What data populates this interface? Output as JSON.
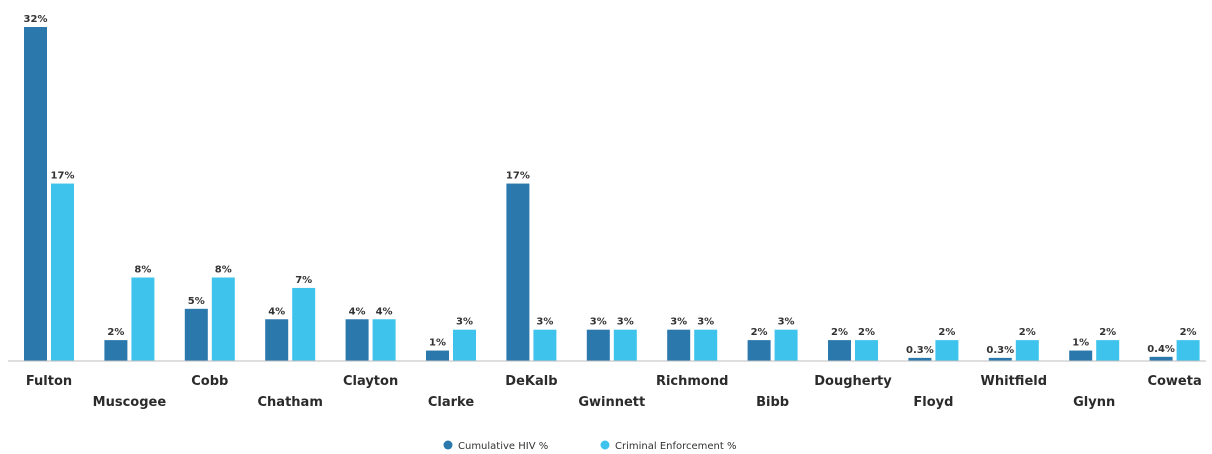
{
  "chart_data": {
    "type": "bar",
    "categories": [
      "Fulton",
      "Muscogee",
      "Cobb",
      "Chatham",
      "Clayton",
      "Clarke",
      "DeKalb",
      "Gwinnett",
      "Richmond",
      "Bibb",
      "Dougherty",
      "Floyd",
      "Whitfield",
      "Glynn",
      "Coweta"
    ],
    "series": [
      {
        "name": "Cumulative HIV %",
        "color": "#2b78ad",
        "values": [
          32,
          2,
          5,
          4,
          4,
          1,
          17,
          3,
          3,
          2,
          2,
          0.3,
          0.3,
          1,
          0.4
        ],
        "labels": [
          "32%",
          "2%",
          "5%",
          "4%",
          "4%",
          "1%",
          "17%",
          "3%",
          "3%",
          "2%",
          "2%",
          "0.3%",
          "0.3%",
          "1%",
          "0.4%"
        ]
      },
      {
        "name": "Criminal Enforcement %",
        "color": "#3ec4ec",
        "values": [
          17,
          8,
          8,
          7,
          4,
          3,
          3,
          3,
          3,
          3,
          2,
          2,
          2,
          2,
          2
        ],
        "labels": [
          "17%",
          "8%",
          "8%",
          "7%",
          "4%",
          "3%",
          "3%",
          "3%",
          "3%",
          "3%",
          "2%",
          "2%",
          "2%",
          "2%",
          "2%"
        ]
      }
    ],
    "ylim": [
      0,
      32
    ],
    "legend": "bottom-center",
    "grid": false
  }
}
